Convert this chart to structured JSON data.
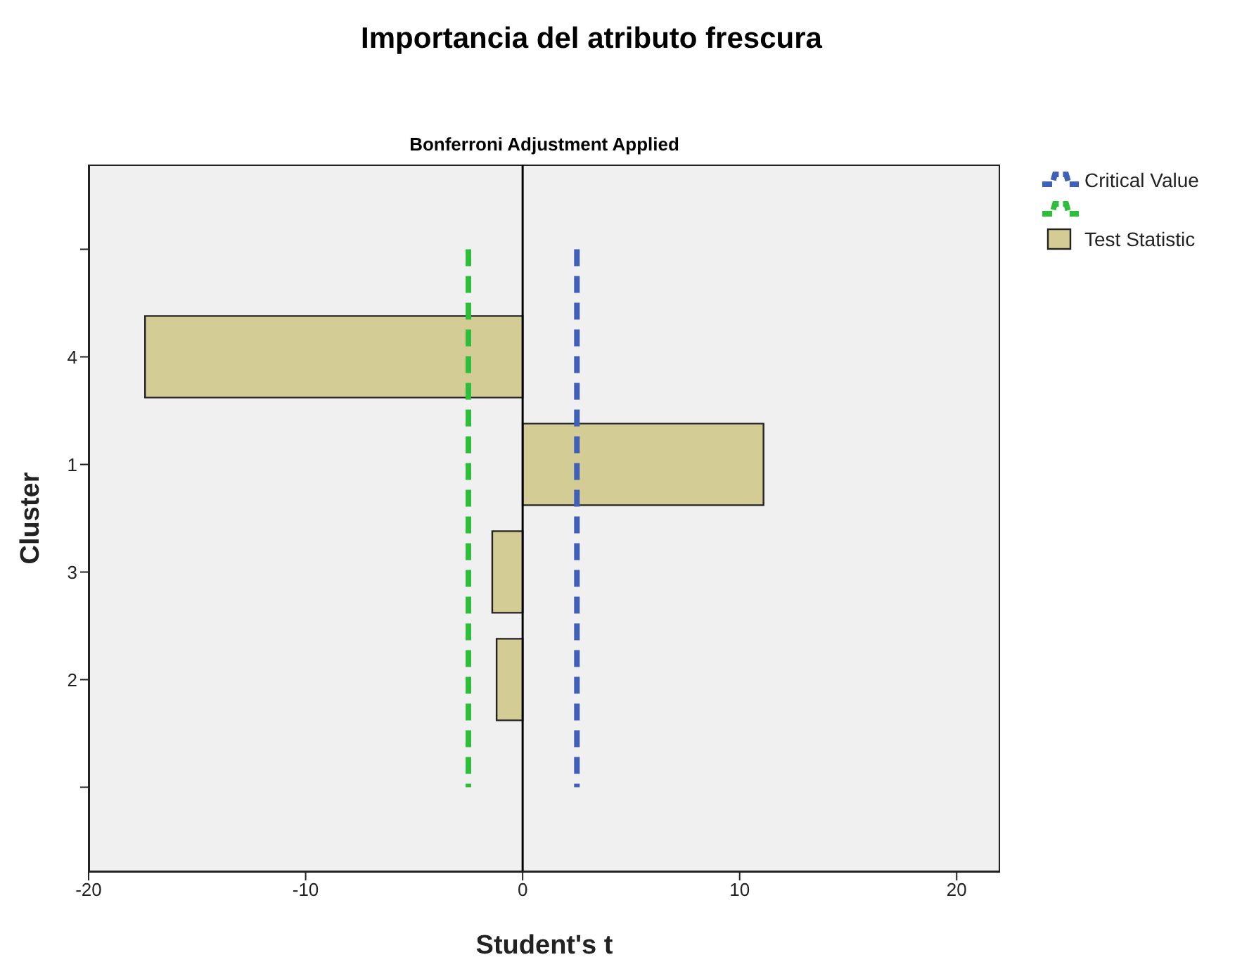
{
  "chart_data": {
    "type": "bar",
    "orientation": "horizontal",
    "title": "Importancia del atributo frescura",
    "subtitle": "Bonferroni Adjustment Applied",
    "xlabel": "Student's t",
    "ylabel": "Cluster",
    "categories": [
      null,
      "4",
      "1",
      "3",
      "2",
      null
    ],
    "series": [
      {
        "name": "Critical Value",
        "type": "line",
        "color": "#4060b8",
        "line_style": "dashed",
        "values": [
          2.5,
          2.5,
          2.5,
          2.5,
          2.5,
          2.5
        ]
      },
      {
        "type": "line",
        "color": "#2ebe3c",
        "line_style": "dashed",
        "values": [
          -2.5,
          -2.5,
          -2.5,
          -2.5,
          -2.5,
          -2.5
        ]
      },
      {
        "name": "Test Statistic",
        "color": "#d3cd95",
        "values": [
          null,
          -17.4,
          11.1,
          -1.4,
          -1.2,
          null
        ]
      }
    ],
    "xlim": [
      -20,
      22
    ],
    "xticks": [
      -20,
      -10,
      0,
      10,
      20
    ],
    "ref_lines": [
      {
        "axis": "x",
        "value": 0,
        "color": "#000000"
      }
    ],
    "legend": "top right",
    "marker": "none"
  }
}
